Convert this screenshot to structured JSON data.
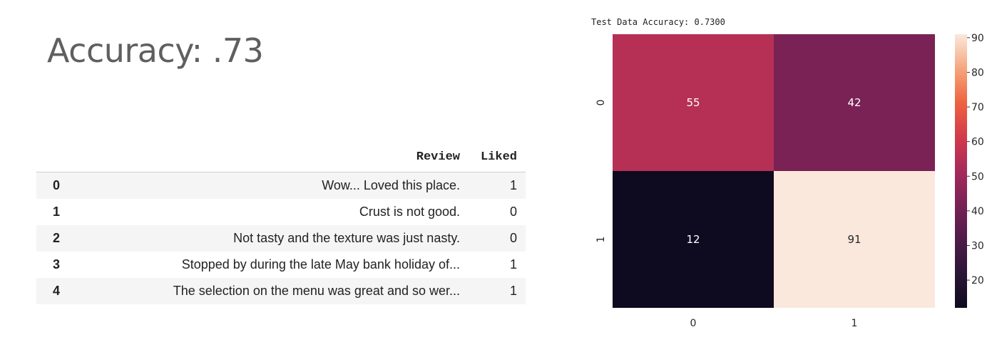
{
  "headline": "Accuracy: .73",
  "table": {
    "columns": [
      "Review",
      "Liked"
    ],
    "rows": [
      {
        "index": "0",
        "review": "Wow... Loved this place.",
        "liked": "1"
      },
      {
        "index": "1",
        "review": "Crust is not good.",
        "liked": "0"
      },
      {
        "index": "2",
        "review": "Not tasty and the texture was just nasty.",
        "liked": "0"
      },
      {
        "index": "3",
        "review": "Stopped by during the late May bank holiday of...",
        "liked": "1"
      },
      {
        "index": "4",
        "review": "The selection on the menu was great and so wer...",
        "liked": "1"
      }
    ]
  },
  "chart_data": {
    "type": "heatmap",
    "title": "Test Data Accuracy: 0.7300",
    "x_categories": [
      "0",
      "1"
    ],
    "y_categories": [
      "0",
      "1"
    ],
    "values": [
      [
        55,
        42
      ],
      [
        12,
        91
      ]
    ],
    "colorbar": {
      "ticks": [
        20,
        30,
        40,
        50,
        60,
        70,
        80,
        90
      ],
      "range": [
        12,
        91
      ]
    },
    "colormap": {
      "low": "#0e0a1f",
      "mid": "#9b2b5a",
      "high": "#fae8dc"
    },
    "annotation_colors": {
      "light": "#ffffff",
      "dark": "#262626"
    }
  }
}
